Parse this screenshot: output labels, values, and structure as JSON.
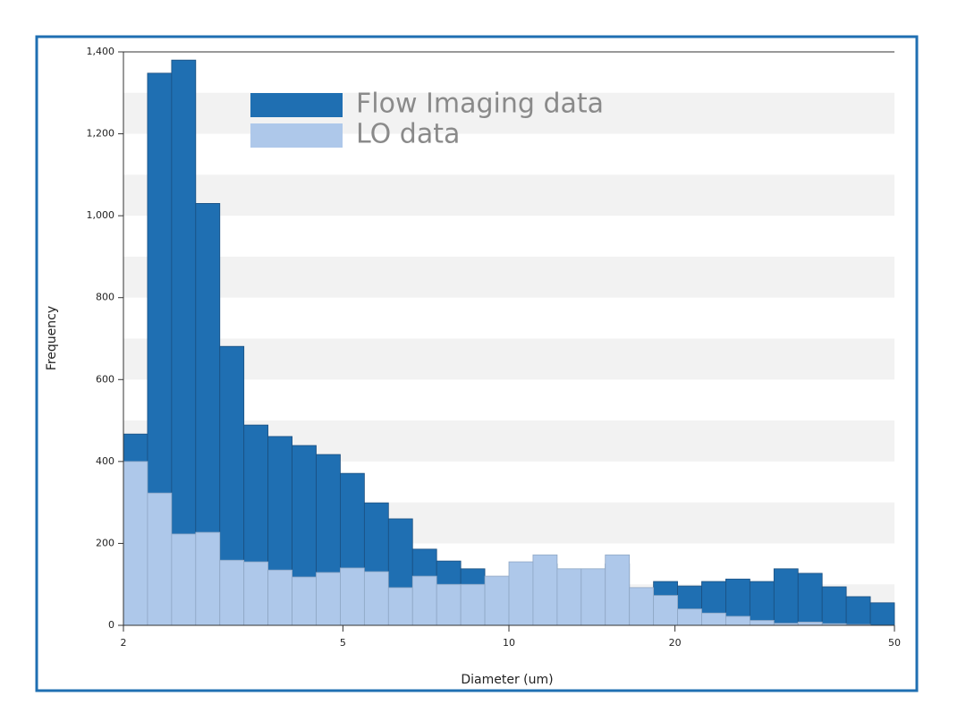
{
  "chart_data": {
    "type": "histogram",
    "xlabel": "Diameter (um)",
    "ylabel": "Frequency",
    "xscale": "log",
    "bins": [
      2,
      2.2116,
      2.4457,
      2.7045,
      2.9907,
      3.3072,
      3.6572,
      4.0442,
      4.4721,
      4.9454,
      5.4687,
      6.0474,
      6.6874,
      7.3951,
      8.1777,
      9.0431,
      10,
      11.058,
      12.229,
      13.522,
      14.953,
      16.536,
      18.286,
      20.221,
      22.361,
      24.727,
      27.344,
      30.237,
      33.437,
      36.976,
      40.889,
      45.216,
      50
    ],
    "series": [
      {
        "name": "Flow Imaging data",
        "color": "#1f6fb2",
        "values": [
          467,
          1348,
          1380,
          1030,
          681,
          489,
          461,
          439,
          417,
          371,
          299,
          260,
          186,
          157,
          138,
          100,
          120,
          150,
          130,
          120,
          150,
          85,
          107,
          96,
          107,
          113,
          107,
          138,
          127,
          94,
          70,
          55
        ]
      },
      {
        "name": "LO data",
        "color": "#aec8ea",
        "values": [
          400,
          323,
          223,
          227,
          159,
          155,
          135,
          118,
          129,
          140,
          131,
          92,
          120,
          100,
          100,
          120,
          155,
          172,
          138,
          138,
          172,
          92,
          73,
          40,
          30,
          22,
          12,
          5,
          8,
          4,
          2,
          0
        ]
      }
    ],
    "xlim": [
      2,
      50
    ],
    "xticks": [
      2,
      5,
      10,
      20,
      50
    ],
    "ylim": [
      0,
      1400
    ],
    "yticks": [
      0,
      200,
      400,
      600,
      800,
      {
        "value": 1000,
        "label": "1,000"
      },
      {
        "value": 1200,
        "label": "1,200"
      },
      {
        "value": 1400,
        "label": "1,400"
      }
    ],
    "banded_background": true
  }
}
